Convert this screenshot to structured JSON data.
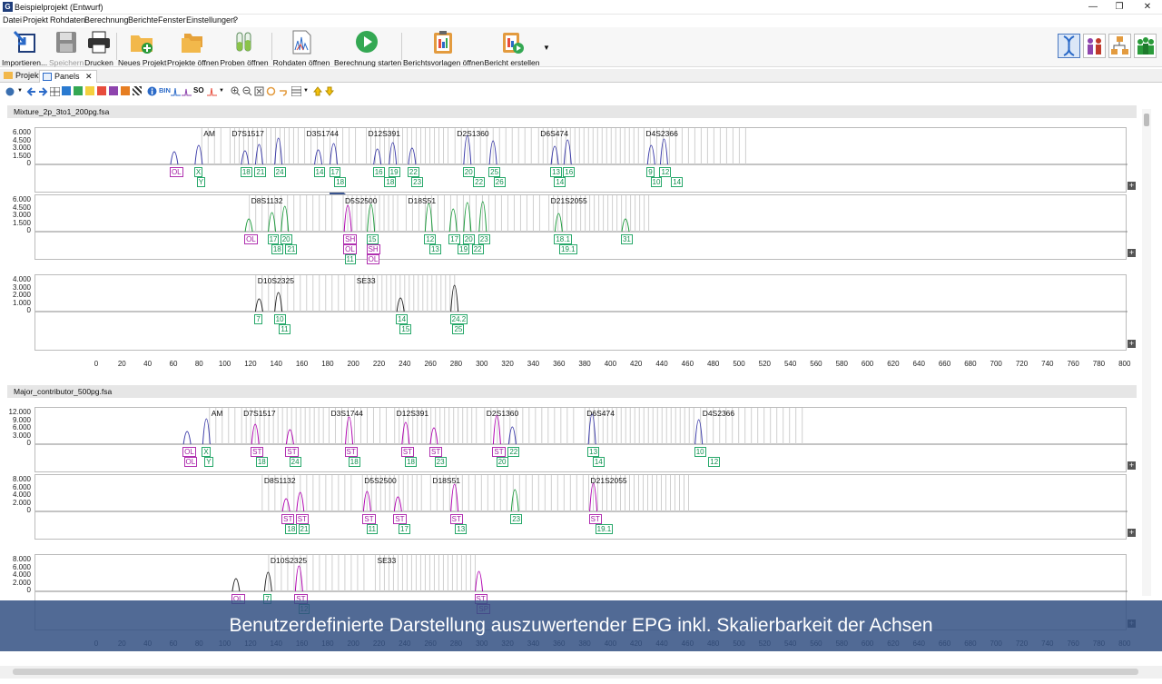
{
  "window": {
    "title": "Beispielprojekt (Entwurf)",
    "app_icon": "G"
  },
  "menu": [
    "Datei",
    "Projekt",
    "Rohdaten",
    "Berechnung",
    "Berichte",
    "Fenster",
    "Einstellungen",
    "?"
  ],
  "toolbar": [
    {
      "label": "Importieren...",
      "icon": "import-icon"
    },
    {
      "label": "Speichern",
      "icon": "save-icon",
      "disabled": true
    },
    {
      "label": "Drucken",
      "icon": "print-icon"
    },
    {
      "label": "Neues Projekt",
      "icon": "new-project-icon"
    },
    {
      "label": "Projekte öffnen",
      "icon": "open-projects-icon"
    },
    {
      "label": "Proben öffnen",
      "icon": "open-samples-icon"
    },
    {
      "label": "Rohdaten öffnen",
      "icon": "open-rawdata-icon"
    },
    {
      "label": "Berechnung starten",
      "icon": "start-calculation-icon"
    },
    {
      "label": "Berichtsvorlagen öffnen",
      "icon": "report-templates-icon"
    },
    {
      "label": "Bericht erstellen",
      "icon": "create-report-icon"
    }
  ],
  "perspectives": [
    "dna-perspective-icon",
    "people-perspective-icon",
    "workflow-perspective-icon",
    "group-perspective-icon"
  ],
  "tabs": [
    {
      "label": "Projekt"
    },
    {
      "label": "Panels",
      "close": "✕"
    }
  ],
  "toolbar2": {
    "bin_label": "BIN",
    "so_label": "SO"
  },
  "xaxis": {
    "ticks": [
      "0",
      "20",
      "40",
      "60",
      "80",
      "100",
      "120",
      "140",
      "160",
      "180",
      "200",
      "220",
      "240",
      "260",
      "280",
      "300",
      "320",
      "340",
      "360",
      "380",
      "400",
      "420",
      "440",
      "460",
      "480",
      "500",
      "520",
      "540",
      "560",
      "580",
      "600",
      "620",
      "640",
      "660",
      "680",
      "700",
      "720",
      "740",
      "760",
      "780",
      "800"
    ],
    "min": 0,
    "max": 800
  },
  "samples": [
    {
      "name": "Mixture_2p_3to1_200pg.fsa",
      "rows": [
        {
          "yticks": [
            "6.000",
            "4.500",
            "3.000",
            "1.500",
            "0"
          ],
          "loci": [
            {
              "n": "AM",
              "x": 80
            },
            {
              "n": "D7S1517",
              "x": 102
            },
            {
              "n": "D3S1744",
              "x": 160
            },
            {
              "n": "D12S391",
              "x": 208
            },
            {
              "n": "D2S1360",
              "x": 277
            },
            {
              "n": "D6S474",
              "x": 342
            },
            {
              "n": "D4S2366",
              "x": 424
            }
          ],
          "markers": [
            {
              "t": "OL",
              "x": 60,
              "r": 0,
              "c": "pk"
            },
            {
              "t": "X",
              "x": 79,
              "r": 0,
              "c": "g"
            },
            {
              "t": "Y",
              "x": 81,
              "r": 1,
              "c": "g"
            },
            {
              "t": "18",
              "x": 115,
              "r": 0,
              "c": "g"
            },
            {
              "t": "21",
              "x": 126,
              "r": 0,
              "c": "g"
            },
            {
              "t": "24",
              "x": 141,
              "r": 0,
              "c": "g"
            },
            {
              "t": "14",
              "x": 172,
              "r": 0,
              "c": "g"
            },
            {
              "t": "17",
              "x": 184,
              "r": 0,
              "c": "g"
            },
            {
              "t": "18",
              "x": 188,
              "r": 1,
              "c": "g"
            },
            {
              "t": "16",
              "x": 218,
              "r": 0,
              "c": "g"
            },
            {
              "t": "19",
              "x": 230,
              "r": 0,
              "c": "g"
            },
            {
              "t": "18",
              "x": 227,
              "r": 1,
              "c": "g"
            },
            {
              "t": "22",
              "x": 245,
              "r": 0,
              "c": "g"
            },
            {
              "t": "23",
              "x": 248,
              "r": 1,
              "c": "g"
            },
            {
              "t": "20",
              "x": 288,
              "r": 0,
              "c": "g"
            },
            {
              "t": "22",
              "x": 296,
              "r": 1,
              "c": "g"
            },
            {
              "t": "25",
              "x": 308,
              "r": 0,
              "c": "g"
            },
            {
              "t": "26",
              "x": 312,
              "r": 1,
              "c": "g"
            },
            {
              "t": "13",
              "x": 356,
              "r": 0,
              "c": "g"
            },
            {
              "t": "16",
              "x": 366,
              "r": 0,
              "c": "g"
            },
            {
              "t": "14",
              "x": 359,
              "r": 1,
              "c": "g"
            },
            {
              "t": "9",
              "x": 431,
              "r": 0,
              "c": "g"
            },
            {
              "t": "12",
              "x": 441,
              "r": 0,
              "c": "g"
            },
            {
              "t": "10",
              "x": 434,
              "r": 1,
              "c": "g"
            },
            {
              "t": "14",
              "x": 450,
              "r": 1,
              "c": "g"
            }
          ]
        },
        {
          "yticks": [
            "6.000",
            "4.500",
            "3.000",
            "1.500",
            "0"
          ],
          "loci": [
            {
              "n": "D8S1132",
              "x": 117
            },
            {
              "n": "D5S2500",
              "x": 190
            },
            {
              "n": "D18S51",
              "x": 239
            },
            {
              "n": "D21S2055",
              "x": 350
            }
          ],
          "markers": [
            {
              "t": "OL",
              "x": 118,
              "r": 0,
              "c": "pk"
            },
            {
              "t": "17",
              "x": 136,
              "r": 0,
              "c": "g"
            },
            {
              "t": "20",
              "x": 146,
              "r": 0,
              "c": "g"
            },
            {
              "t": "18",
              "x": 139,
              "r": 1,
              "c": "g"
            },
            {
              "t": "21",
              "x": 150,
              "r": 1,
              "c": "g"
            },
            {
              "t": "SH",
              "x": 195,
              "r": 0,
              "c": "pk"
            },
            {
              "t": "OL",
              "x": 195,
              "r": 1,
              "c": "pk"
            },
            {
              "t": "11",
              "x": 196,
              "r": 2,
              "c": "g"
            },
            {
              "t": "15",
              "x": 213,
              "r": 0,
              "c": "g"
            },
            {
              "t": "SH",
              "x": 213,
              "r": 1,
              "c": "pk"
            },
            {
              "t": "OL",
              "x": 213,
              "r": 2,
              "c": "pk"
            },
            {
              "t": "12",
              "x": 258,
              "r": 0,
              "c": "g"
            },
            {
              "t": "13",
              "x": 262,
              "r": 1,
              "c": "g"
            },
            {
              "t": "17",
              "x": 277,
              "r": 0,
              "c": "g"
            },
            {
              "t": "20",
              "x": 288,
              "r": 0,
              "c": "g"
            },
            {
              "t": "19",
              "x": 284,
              "r": 1,
              "c": "g"
            },
            {
              "t": "22",
              "x": 295,
              "r": 1,
              "c": "g"
            },
            {
              "t": "23",
              "x": 300,
              "r": 0,
              "c": "g"
            },
            {
              "t": "18.1",
              "x": 359,
              "r": 0,
              "c": "g"
            },
            {
              "t": "19.1",
              "x": 363,
              "r": 1,
              "c": "g"
            },
            {
              "t": "31",
              "x": 411,
              "r": 0,
              "c": "g"
            }
          ]
        },
        {
          "yticks": [
            "4.000",
            "3.000",
            "2.000",
            "1.000",
            "0"
          ],
          "loci": [
            {
              "n": "D10S2325",
              "x": 122
            },
            {
              "n": "SE33",
              "x": 199
            }
          ],
          "markers": [
            {
              "t": "7",
              "x": 126,
              "r": 0,
              "c": "g"
            },
            {
              "t": "10",
              "x": 141,
              "r": 0,
              "c": "g"
            },
            {
              "t": "11",
              "x": 145,
              "r": 1,
              "c": "g"
            },
            {
              "t": "14",
              "x": 236,
              "r": 0,
              "c": "g"
            },
            {
              "t": "15",
              "x": 239,
              "r": 1,
              "c": "g"
            },
            {
              "t": "24.2",
              "x": 278,
              "r": 0,
              "c": "g"
            },
            {
              "t": "25",
              "x": 280,
              "r": 1,
              "c": "g"
            }
          ]
        }
      ]
    },
    {
      "name": "Major_contributor_500pg.fsa",
      "rows": [
        {
          "yticks": [
            "12.000",
            "9.000",
            "6.000",
            "3.000",
            "0"
          ],
          "loci": [
            {
              "n": "AM",
              "x": 86
            },
            {
              "n": "D7S1517",
              "x": 111
            },
            {
              "n": "D3S1744",
              "x": 179
            },
            {
              "n": "D12S391",
              "x": 230
            },
            {
              "n": "D2S1360",
              "x": 300
            },
            {
              "n": "D6S474",
              "x": 378
            },
            {
              "n": "D4S2366",
              "x": 468
            }
          ],
          "markers": [
            {
              "t": "OL",
              "x": 70,
              "r": 0,
              "c": "pk"
            },
            {
              "t": "OL",
              "x": 71,
              "r": 1,
              "c": "pk"
            },
            {
              "t": "X",
              "x": 85,
              "r": 0,
              "c": "g"
            },
            {
              "t": "Y",
              "x": 87,
              "r": 1,
              "c": "g"
            },
            {
              "t": "ST",
              "x": 123,
              "r": 0,
              "c": "pk"
            },
            {
              "t": "18",
              "x": 127,
              "r": 1,
              "c": "g"
            },
            {
              "t": "ST",
              "x": 150,
              "r": 0,
              "c": "pk"
            },
            {
              "t": "24",
              "x": 153,
              "r": 1,
              "c": "g"
            },
            {
              "t": "ST",
              "x": 196,
              "r": 0,
              "c": "pk"
            },
            {
              "t": "18",
              "x": 199,
              "r": 1,
              "c": "g"
            },
            {
              "t": "ST",
              "x": 240,
              "r": 0,
              "c": "pk"
            },
            {
              "t": "18",
              "x": 243,
              "r": 1,
              "c": "g"
            },
            {
              "t": "ST",
              "x": 262,
              "r": 0,
              "c": "pk"
            },
            {
              "t": "23",
              "x": 266,
              "r": 1,
              "c": "g"
            },
            {
              "t": "ST",
              "x": 311,
              "r": 0,
              "c": "pk"
            },
            {
              "t": "22",
              "x": 323,
              "r": 0,
              "c": "g"
            },
            {
              "t": "20",
              "x": 314,
              "r": 1,
              "c": "g"
            },
            {
              "t": "13",
              "x": 385,
              "r": 0,
              "c": "g"
            },
            {
              "t": "14",
              "x": 389,
              "r": 1,
              "c": "g"
            },
            {
              "t": "10",
              "x": 468,
              "r": 0,
              "c": "g"
            },
            {
              "t": "12",
              "x": 479,
              "r": 1,
              "c": "g"
            }
          ]
        },
        {
          "yticks": [
            "8.000",
            "6.000",
            "4.000",
            "2.000",
            "0"
          ],
          "loci": [
            {
              "n": "D8S1132",
              "x": 127
            },
            {
              "n": "D5S2500",
              "x": 205
            },
            {
              "n": "D18S51",
              "x": 258
            },
            {
              "n": "D21S2055",
              "x": 381
            }
          ],
          "markers": [
            {
              "t": "ST",
              "x": 147,
              "r": 0,
              "c": "pk"
            },
            {
              "t": "ST",
              "x": 158,
              "r": 0,
              "c": "pk"
            },
            {
              "t": "18",
              "x": 150,
              "r": 1,
              "c": "g"
            },
            {
              "t": "21",
              "x": 160,
              "r": 1,
              "c": "g"
            },
            {
              "t": "ST",
              "x": 210,
              "r": 0,
              "c": "pk"
            },
            {
              "t": "11",
              "x": 213,
              "r": 1,
              "c": "g"
            },
            {
              "t": "ST",
              "x": 234,
              "r": 0,
              "c": "pk"
            },
            {
              "t": "17",
              "x": 238,
              "r": 1,
              "c": "g"
            },
            {
              "t": "ST",
              "x": 278,
              "r": 0,
              "c": "pk"
            },
            {
              "t": "13",
              "x": 282,
              "r": 1,
              "c": "g"
            },
            {
              "t": "23",
              "x": 325,
              "r": 0,
              "c": "g"
            },
            {
              "t": "ST",
              "x": 386,
              "r": 0,
              "c": "pk"
            },
            {
              "t": "19.1",
              "x": 391,
              "r": 1,
              "c": "g"
            }
          ]
        },
        {
          "yticks": [
            "8.000",
            "6.000",
            "4.000",
            "2.000",
            "0"
          ],
          "loci": [
            {
              "n": "D10S2325",
              "x": 132
            },
            {
              "n": "SE33",
              "x": 215
            }
          ],
          "markers": [
            {
              "t": "OL",
              "x": 108,
              "r": 0,
              "c": "pk"
            },
            {
              "t": "7",
              "x": 133,
              "r": 0,
              "c": "g"
            },
            {
              "t": "ST",
              "x": 157,
              "r": 0,
              "c": "pk"
            },
            {
              "t": "12",
              "x": 160,
              "r": 1,
              "c": "g"
            },
            {
              "t": "ST",
              "x": 297,
              "r": 0,
              "c": "pk"
            },
            {
              "t": "SP",
              "x": 299,
              "r": 1,
              "c": "pk"
            }
          ]
        }
      ]
    }
  ],
  "caption": "Benutzerdefinierte Darstellung auszuwertender EPG inkl. Skalierbarkeit der Achsen",
  "colors": {
    "blue_peaks": "#3a3aa8",
    "green_peaks": "#1a9a3a",
    "black_peaks": "#222222",
    "marker_green": "#27a86a",
    "marker_pink": "#b030b0",
    "selection": "#b000b0"
  }
}
